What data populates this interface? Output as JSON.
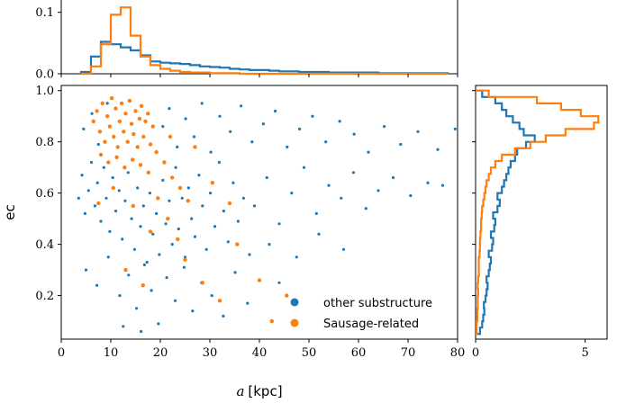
{
  "chart_data": [
    {
      "panel": "main-scatter",
      "type": "scatter",
      "xlabel_var": "a",
      "xlabel_unit": "[kpc]",
      "ylabel": "ec",
      "xlim": [
        0,
        80
      ],
      "ylim": [
        0.03,
        1.02
      ],
      "xticks": [
        "0",
        "10",
        "20",
        "30",
        "40",
        "50",
        "60",
        "70",
        "80"
      ],
      "yticks": [
        "0.2",
        "0.4",
        "0.6",
        "0.8",
        "1.0"
      ],
      "legend_position": "lower-right",
      "series": [
        {
          "name": "other substructure",
          "color": "#1f77b4",
          "points": [
            [
              3.5,
              0.58
            ],
            [
              4.2,
              0.67
            ],
            [
              4.8,
              0.52
            ],
            [
              5.5,
              0.61
            ],
            [
              6.1,
              0.72
            ],
            [
              6.8,
              0.55
            ],
            [
              7.3,
              0.64
            ],
            [
              8.0,
              0.49
            ],
            [
              8.6,
              0.7
            ],
            [
              9.1,
              0.58
            ],
            [
              9.8,
              0.45
            ],
            [
              10.4,
              0.66
            ],
            [
              11.0,
              0.53
            ],
            [
              11.7,
              0.61
            ],
            [
              12.3,
              0.42
            ],
            [
              12.9,
              0.57
            ],
            [
              13.5,
              0.68
            ],
            [
              14.2,
              0.5
            ],
            [
              14.8,
              0.38
            ],
            [
              15.4,
              0.62
            ],
            [
              16.0,
              0.47
            ],
            [
              16.6,
              0.55
            ],
            [
              17.3,
              0.33
            ],
            [
              17.9,
              0.6
            ],
            [
              18.5,
              0.44
            ],
            [
              19.2,
              0.52
            ],
            [
              19.8,
              0.36
            ],
            [
              20.5,
              0.65
            ],
            [
              21.1,
              0.48
            ],
            [
              21.8,
              0.57
            ],
            [
              22.4,
              0.4
            ],
            [
              23.1,
              0.7
            ],
            [
              23.7,
              0.46
            ],
            [
              24.4,
              0.58
            ],
            [
              25.0,
              0.35
            ],
            [
              25.7,
              0.62
            ],
            [
              26.3,
              0.5
            ],
            [
              27.0,
              0.43
            ],
            [
              27.8,
              0.67
            ],
            [
              28.5,
              0.55
            ],
            [
              29.3,
              0.38
            ],
            [
              30.1,
              0.6
            ],
            [
              31.0,
              0.47
            ],
            [
              31.9,
              0.72
            ],
            [
              32.8,
              0.53
            ],
            [
              33.7,
              0.41
            ],
            [
              34.7,
              0.64
            ],
            [
              35.7,
              0.49
            ],
            [
              36.8,
              0.58
            ],
            [
              38.0,
              0.36
            ],
            [
              4.5,
              0.85
            ],
            [
              6.2,
              0.91
            ],
            [
              7.5,
              0.79
            ],
            [
              9.3,
              0.95
            ],
            [
              20.5,
              0.86
            ],
            [
              21.8,
              0.93
            ],
            [
              23.4,
              0.78
            ],
            [
              25.1,
              0.89
            ],
            [
              26.8,
              0.82
            ],
            [
              28.4,
              0.95
            ],
            [
              30.2,
              0.76
            ],
            [
              32.0,
              0.9
            ],
            [
              34.1,
              0.84
            ],
            [
              36.3,
              0.94
            ],
            [
              38.5,
              0.8
            ],
            [
              40.8,
              0.87
            ],
            [
              43.2,
              0.92
            ],
            [
              45.6,
              0.78
            ],
            [
              48.1,
              0.85
            ],
            [
              50.7,
              0.9
            ],
            [
              53.4,
              0.8
            ],
            [
              56.2,
              0.88
            ],
            [
              59.1,
              0.83
            ],
            [
              62.0,
              0.76
            ],
            [
              65.2,
              0.86
            ],
            [
              68.5,
              0.79
            ],
            [
              72.0,
              0.84
            ],
            [
              76.0,
              0.77
            ],
            [
              79.5,
              0.85
            ],
            [
              5.0,
              0.3
            ],
            [
              7.2,
              0.24
            ],
            [
              9.5,
              0.35
            ],
            [
              11.8,
              0.2
            ],
            [
              13.6,
              0.28
            ],
            [
              15.2,
              0.15
            ],
            [
              16.8,
              0.32
            ],
            [
              18.2,
              0.22
            ],
            [
              19.6,
              0.09
            ],
            [
              21.3,
              0.27
            ],
            [
              23.0,
              0.18
            ],
            [
              24.8,
              0.31
            ],
            [
              26.5,
              0.14
            ],
            [
              28.3,
              0.25
            ],
            [
              30.4,
              0.2
            ],
            [
              32.7,
              0.12
            ],
            [
              35.1,
              0.29
            ],
            [
              37.6,
              0.17
            ],
            [
              12.5,
              0.08
            ],
            [
              16.1,
              0.06
            ],
            [
              39.0,
              0.55
            ],
            [
              41.5,
              0.66
            ],
            [
              44.0,
              0.48
            ],
            [
              46.5,
              0.6
            ],
            [
              49.0,
              0.7
            ],
            [
              51.5,
              0.52
            ],
            [
              54.0,
              0.63
            ],
            [
              56.5,
              0.58
            ],
            [
              59.0,
              0.68
            ],
            [
              61.5,
              0.54
            ],
            [
              64.0,
              0.61
            ],
            [
              67.0,
              0.66
            ],
            [
              70.5,
              0.59
            ],
            [
              74.0,
              0.64
            ],
            [
              77.0,
              0.63
            ],
            [
              42.0,
              0.4
            ],
            [
              47.5,
              0.35
            ],
            [
              52.0,
              0.44
            ],
            [
              57.0,
              0.38
            ],
            [
              44.0,
              0.25
            ]
          ]
        },
        {
          "name": "Sausage-related",
          "color": "#ff7f0e",
          "points": [
            [
              6.5,
              0.88
            ],
            [
              7.2,
              0.92
            ],
            [
              7.8,
              0.84
            ],
            [
              8.3,
              0.95
            ],
            [
              8.8,
              0.8
            ],
            [
              9.3,
              0.9
            ],
            [
              9.8,
              0.86
            ],
            [
              10.2,
              0.97
            ],
            [
              10.6,
              0.82
            ],
            [
              11.0,
              0.93
            ],
            [
              11.4,
              0.78
            ],
            [
              11.8,
              0.88
            ],
            [
              12.2,
              0.95
            ],
            [
              12.6,
              0.84
            ],
            [
              13.0,
              0.91
            ],
            [
              13.4,
              0.8
            ],
            [
              13.8,
              0.96
            ],
            [
              14.2,
              0.87
            ],
            [
              14.6,
              0.83
            ],
            [
              15.0,
              0.92
            ],
            [
              15.4,
              0.78
            ],
            [
              15.8,
              0.89
            ],
            [
              16.2,
              0.94
            ],
            [
              16.6,
              0.82
            ],
            [
              17.0,
              0.88
            ],
            [
              17.5,
              0.91
            ],
            [
              18.0,
              0.79
            ],
            [
              18.5,
              0.86
            ],
            [
              8.0,
              0.75
            ],
            [
              9.5,
              0.72
            ],
            [
              11.2,
              0.74
            ],
            [
              12.8,
              0.7
            ],
            [
              14.4,
              0.73
            ],
            [
              16.0,
              0.71
            ],
            [
              17.6,
              0.68
            ],
            [
              19.2,
              0.76
            ],
            [
              20.8,
              0.72
            ],
            [
              22.4,
              0.66
            ],
            [
              24.0,
              0.62
            ],
            [
              25.6,
              0.57
            ],
            [
              21.5,
              0.5
            ],
            [
              23.5,
              0.42
            ],
            [
              25.0,
              0.34
            ],
            [
              19.5,
              0.58
            ],
            [
              18.0,
              0.45
            ],
            [
              14.5,
              0.55
            ],
            [
              10.5,
              0.62
            ],
            [
              7.5,
              0.56
            ],
            [
              13.0,
              0.3
            ],
            [
              16.5,
              0.24
            ],
            [
              28.5,
              0.25
            ],
            [
              32.0,
              0.18
            ],
            [
              30.5,
              0.64
            ],
            [
              35.5,
              0.4
            ],
            [
              40.0,
              0.26
            ],
            [
              42.5,
              0.1
            ],
            [
              45.5,
              0.2
            ],
            [
              34.0,
              0.56
            ],
            [
              27.0,
              0.78
            ],
            [
              22.0,
              0.82
            ]
          ]
        }
      ]
    },
    {
      "panel": "top-histogram",
      "type": "histogram-step",
      "x_unit": "a [kpc]",
      "ylim": [
        0,
        0.12
      ],
      "yticks": [
        "0.0",
        "0.1"
      ],
      "bin_edges": [
        4,
        6,
        8,
        10,
        12,
        14,
        16,
        18,
        20,
        22,
        24,
        26,
        28,
        30,
        32,
        34,
        36,
        38,
        40,
        42,
        44,
        46,
        48,
        50,
        52,
        54,
        56,
        58,
        60,
        62,
        64,
        66,
        68,
        70,
        72,
        74,
        76,
        78
      ],
      "series": [
        {
          "name": "other substructure",
          "color": "#1f77b4",
          "values": [
            0.003,
            0.028,
            0.052,
            0.048,
            0.043,
            0.038,
            0.03,
            0.02,
            0.018,
            0.017,
            0.016,
            0.014,
            0.012,
            0.011,
            0.01,
            0.008,
            0.007,
            0.006,
            0.006,
            0.005,
            0.004,
            0.004,
            0.003,
            0.003,
            0.003,
            0.002,
            0.002,
            0.002,
            0.002,
            0.002,
            0.001,
            0.001,
            0.001,
            0.001,
            0.001,
            0.001,
            0.001
          ]
        },
        {
          "name": "Sausage-related",
          "color": "#ff7f0e",
          "values": [
            0.0,
            0.012,
            0.048,
            0.096,
            0.108,
            0.062,
            0.028,
            0.014,
            0.008,
            0.005,
            0.003,
            0.002,
            0.002,
            0.001,
            0.001,
            0.001,
            0.0,
            0.0,
            0.0,
            0.0,
            0.0,
            0.0,
            0.0,
            0.0,
            0.0,
            0.0,
            0.0,
            0.0,
            0.0,
            0.0,
            0.0,
            0.0,
            0.0,
            0.0,
            0.0,
            0.0,
            0.0
          ]
        }
      ]
    },
    {
      "panel": "right-histogram",
      "type": "histogram-step-horizontal",
      "xlim": [
        0,
        6
      ],
      "xticks": [
        "0",
        "5"
      ],
      "bin_edges": [
        0.05,
        0.075,
        0.1,
        0.125,
        0.15,
        0.175,
        0.2,
        0.225,
        0.25,
        0.275,
        0.3,
        0.325,
        0.35,
        0.375,
        0.4,
        0.425,
        0.45,
        0.475,
        0.5,
        0.525,
        0.55,
        0.575,
        0.6,
        0.625,
        0.65,
        0.675,
        0.7,
        0.725,
        0.75,
        0.775,
        0.8,
        0.825,
        0.85,
        0.875,
        0.9,
        0.925,
        0.95,
        0.975,
        1.0
      ],
      "series": [
        {
          "name": "other substructure",
          "color": "#1f77b4",
          "values": [
            0.2,
            0.3,
            0.35,
            0.4,
            0.38,
            0.45,
            0.5,
            0.55,
            0.5,
            0.6,
            0.65,
            0.7,
            0.6,
            0.75,
            0.8,
            0.7,
            0.85,
            0.9,
            0.8,
            1.0,
            1.1,
            1.0,
            1.2,
            1.3,
            1.4,
            1.5,
            1.6,
            1.8,
            1.9,
            2.3,
            2.7,
            2.2,
            2.0,
            1.7,
            1.4,
            1.2,
            0.9,
            0.3
          ]
        },
        {
          "name": "Sausage-related",
          "color": "#ff7f0e",
          "values": [
            0.05,
            0.05,
            0.08,
            0.08,
            0.1,
            0.1,
            0.12,
            0.1,
            0.12,
            0.15,
            0.15,
            0.15,
            0.18,
            0.2,
            0.2,
            0.22,
            0.25,
            0.25,
            0.28,
            0.3,
            0.35,
            0.4,
            0.45,
            0.5,
            0.6,
            0.7,
            0.9,
            1.2,
            1.8,
            2.5,
            3.2,
            4.1,
            5.4,
            5.6,
            4.8,
            3.9,
            2.8,
            0.6
          ]
        }
      ]
    }
  ]
}
